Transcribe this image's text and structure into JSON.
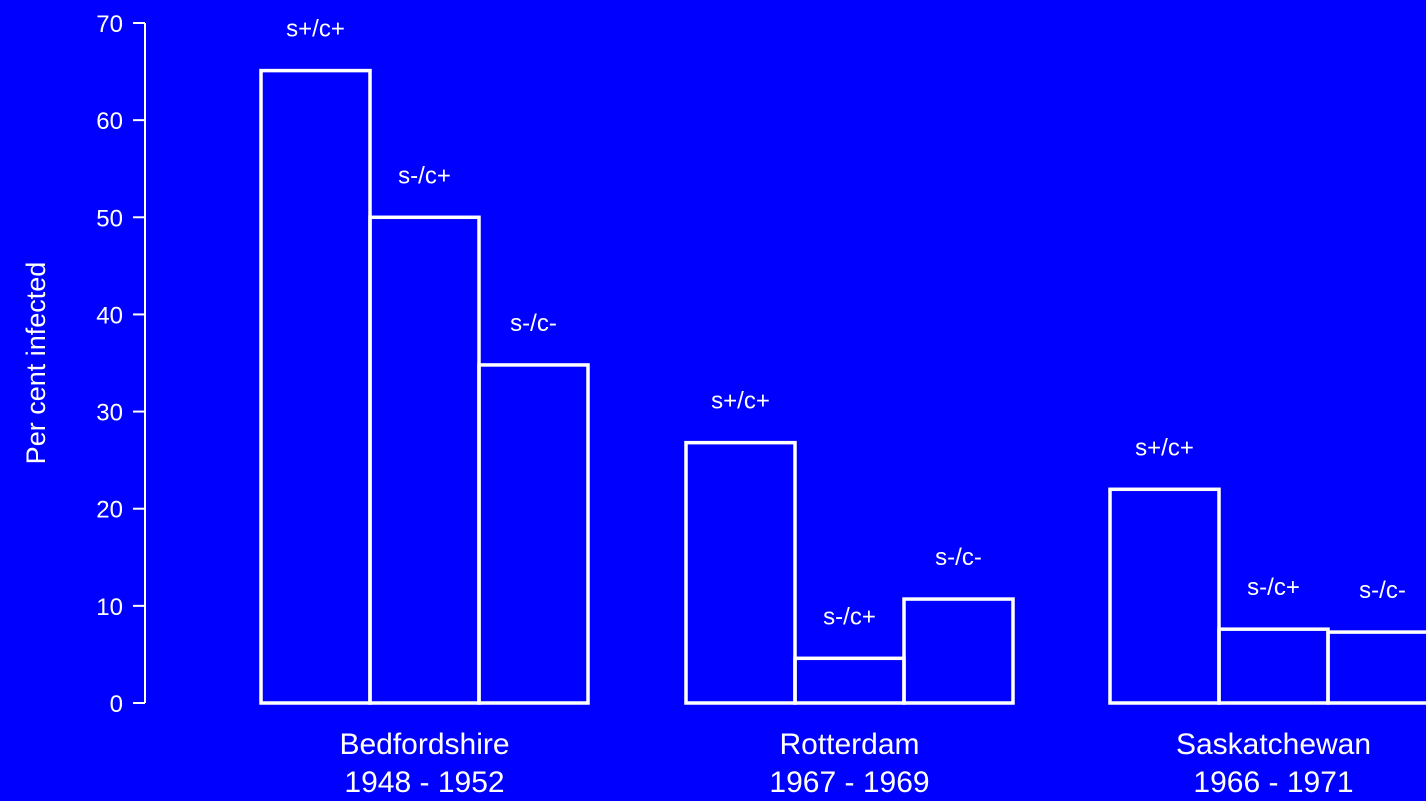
{
  "chart_data": {
    "type": "bar",
    "title": "",
    "ylabel": "Per cent infected",
    "xlabel": "",
    "ylim": [
      0,
      70
    ],
    "yticks": [
      0,
      10,
      20,
      30,
      40,
      50,
      60,
      70
    ],
    "grid": false,
    "groups": [
      {
        "name": "Bedfordshire",
        "period": "1948 - 1952",
        "bars": [
          {
            "label": "s+/c+",
            "value": 65.1
          },
          {
            "label": "s-/c+",
            "value": 50.0
          },
          {
            "label": "s-/c-",
            "value": 34.8
          }
        ]
      },
      {
        "name": "Rotterdam",
        "period": "1967 - 1969",
        "bars": [
          {
            "label": "s+/c+",
            "value": 26.8
          },
          {
            "label": "s-/c+",
            "value": 4.6
          },
          {
            "label": "s-/c-",
            "value": 10.7
          }
        ]
      },
      {
        "name": "Saskatchewan",
        "period": "1966 - 1971",
        "bars": [
          {
            "label": "s+/c+",
            "value": 22.0
          },
          {
            "label": "s-/c+",
            "value": 7.6
          },
          {
            "label": "s-/c-",
            "value": 7.3
          }
        ]
      }
    ],
    "colors": {
      "background": "#0000FF",
      "foreground": "#FFFFFF"
    }
  }
}
